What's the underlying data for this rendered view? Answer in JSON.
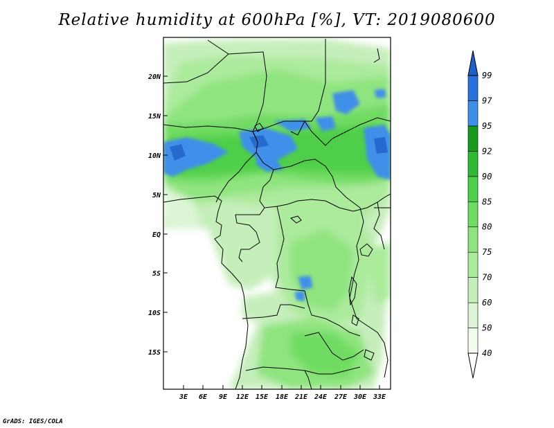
{
  "title": "Relative humidity at 600hPa [%], VT: 2019080600",
  "credit": "GrADS: IGES/COLA",
  "map": {
    "lat_labels": [
      "20N",
      "15N",
      "10N",
      "5N",
      "EQ",
      "5S",
      "10S",
      "15S"
    ],
    "lon_labels": [
      "3E",
      "6E",
      "9E",
      "12E",
      "15E",
      "18E",
      "21E",
      "24E",
      "27E",
      "30E",
      "33E"
    ]
  },
  "colorbar": {
    "levels": [
      "40",
      "50",
      "60",
      "70",
      "75",
      "80",
      "85",
      "90",
      "92",
      "95",
      "97",
      "99"
    ],
    "colors": [
      "#f2fcef",
      "#ddf5d6",
      "#c6eebb",
      "#acea9c",
      "#8fe47f",
      "#6fdb62",
      "#4fcf4a",
      "#2fba35",
      "#1a9a1c",
      "#3f8fe8",
      "#2a6fdb",
      "#2060c8"
    ]
  }
}
